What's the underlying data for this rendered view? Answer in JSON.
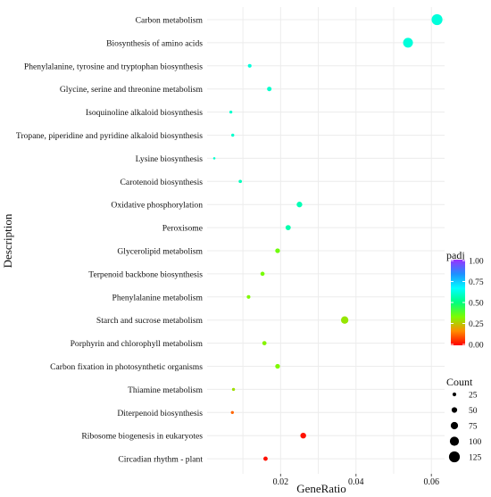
{
  "chart_data": {
    "type": "scatter",
    "title": "",
    "xlabel": "GeneRatio",
    "ylabel": "Description",
    "xlim": [
      0.0005,
      0.0635
    ],
    "x_ticks": [
      0.02,
      0.04,
      0.06
    ],
    "x_tick_labels": [
      "0.02",
      "0.04",
      "0.06"
    ],
    "grid": true,
    "legend_position": "right",
    "color_legend": {
      "title": "padj",
      "min": 0,
      "max": 1,
      "ticks": [
        1.0,
        0.75,
        0.5,
        0.25,
        0.0
      ],
      "tick_labels": [
        "1.00",
        "0.75",
        "0.50",
        "0.25",
        "0.00"
      ],
      "stops": [
        "#ff0000",
        "#ff8c00",
        "#7cfc00",
        "#00ff7f",
        "#00ffff",
        "#1e90ff",
        "#9b30ff"
      ]
    },
    "size_legend": {
      "title": "Count",
      "values": [
        25,
        50,
        75,
        100,
        125
      ],
      "labels": [
        "25",
        "50",
        "75",
        "100",
        "125"
      ]
    },
    "categories": [
      "Carbon metabolism",
      "Biosynthesis of amino acids",
      "Phenylalanine, tyrosine and tryptophan biosynthesis",
      "Glycine, serine and threonine metabolism",
      "Isoquinoline alkaloid biosynthesis",
      "Tropane, piperidine and pyridine alkaloid biosynthesis",
      "Lysine biosynthesis",
      "Carotenoid biosynthesis",
      "Oxidative phosphorylation",
      "Peroxisome",
      "Glycerolipid metabolism",
      "Terpenoid backbone biosynthesis",
      "Phenylalanine metabolism",
      "Starch and sucrose metabolism",
      "Porphyrin and chlorophyll metabolism",
      "Carbon fixation in photosynthetic organisms",
      "Thiamine metabolism",
      "Diterpenoid biosynthesis",
      "Ribosome biogenesis in eukaryotes",
      "Circadian rhythm - plant"
    ],
    "points": [
      {
        "category": "Carbon metabolism",
        "x": 0.0615,
        "count": 125,
        "padj": 0.62
      },
      {
        "category": "Biosynthesis of amino acids",
        "x": 0.0538,
        "count": 110,
        "padj": 0.62
      },
      {
        "category": "Phenylalanine, tyrosine and tryptophan biosynthesis",
        "x": 0.0118,
        "count": 24,
        "padj": 0.62
      },
      {
        "category": "Glycine, serine and threonine metabolism",
        "x": 0.017,
        "count": 35,
        "padj": 0.6
      },
      {
        "category": "Isoquinoline alkaloid biosynthesis",
        "x": 0.0068,
        "count": 14,
        "padj": 0.6
      },
      {
        "category": "Tropane, piperidine and pyridine alkaloid biosynthesis",
        "x": 0.0073,
        "count": 15,
        "padj": 0.6
      },
      {
        "category": "Lysine biosynthesis",
        "x": 0.0024,
        "count": 5,
        "padj": 0.6
      },
      {
        "category": "Carotenoid biosynthesis",
        "x": 0.0093,
        "count": 19,
        "padj": 0.58
      },
      {
        "category": "Oxidative phosphorylation",
        "x": 0.025,
        "count": 51,
        "padj": 0.57
      },
      {
        "category": "Peroxisome",
        "x": 0.022,
        "count": 45,
        "padj": 0.56
      },
      {
        "category": "Glycerolipid metabolism",
        "x": 0.0192,
        "count": 39,
        "padj": 0.35
      },
      {
        "category": "Terpenoid backbone biosynthesis",
        "x": 0.0152,
        "count": 31,
        "padj": 0.34
      },
      {
        "category": "Phenylalanine metabolism",
        "x": 0.0115,
        "count": 23,
        "padj": 0.33
      },
      {
        "category": "Starch and sucrose metabolism",
        "x": 0.037,
        "count": 76,
        "padj": 0.3
      },
      {
        "category": "Porphyrin and chlorophyll metabolism",
        "x": 0.0157,
        "count": 32,
        "padj": 0.32
      },
      {
        "category": "Carbon fixation in photosynthetic organisms",
        "x": 0.0192,
        "count": 39,
        "padj": 0.33
      },
      {
        "category": "Thiamine metabolism",
        "x": 0.0075,
        "count": 15,
        "padj": 0.29
      },
      {
        "category": "Diterpenoid biosynthesis",
        "x": 0.0072,
        "count": 15,
        "padj": 0.12
      },
      {
        "category": "Ribosome biogenesis in eukaryotes",
        "x": 0.026,
        "count": 53,
        "padj": 0.02
      },
      {
        "category": "Circadian rhythm - plant",
        "x": 0.016,
        "count": 33,
        "padj": 0.02
      }
    ]
  }
}
